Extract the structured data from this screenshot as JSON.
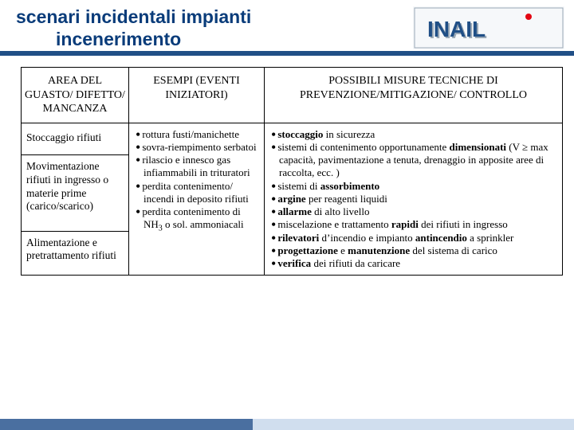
{
  "title_line1": "scenari incidentali impianti",
  "title_line2": "incenerimento",
  "logo_text": "INAIL",
  "logo_colors": {
    "text": "#204f86",
    "dot": "#e30613",
    "shadow": "#9aa8b5"
  },
  "rule_color": "#204f86",
  "table": {
    "headers": {
      "c1": "AREA DEL GUASTO/ DIFETTO/ MANCANZA",
      "c2": "ESEMPI (EVENTI INIZIATORI)",
      "c3": "POSSIBILI MISURE TECNICHE DI PREVENZIONE/MITIGAZIONE/ CONTROLLO"
    },
    "col1_rows": {
      "r1": "Stoccaggio rifiuti",
      "r2": "Movimentazione rifiuti in ingresso o materie prime (carico/scarico)",
      "r3": "Alimentazione e pretrattamento rifiuti"
    },
    "col2_items": [
      "rottura fusti/manichette",
      "sovra-riempimento serbatoi",
      "rilascio e innesco gas infiammabili in trituratori",
      "perdita contenimento/ incendi in deposito rifiuti",
      "perdita contenimento di NH<sub>3</sub> o sol. ammoniacali"
    ],
    "col3_items": [
      "<b>stoccaggio</b> in sicurezza",
      "sistemi di contenimento opportunamente <b>dimensionati</b> (V ≥ max capacità, pavimentazione a tenuta, drenaggio in apposite aree di raccolta, ecc. )",
      "sistemi di <b>assorbimento</b>",
      "<b>argine</b> per reagenti liquidi",
      "<b>allarme</b> di alto livello",
      "miscelazione e trattamento <b>rapidi</b> dei rifiuti in ingresso",
      "<b>rilevatori</b> d’incendio e impianto <b>antincendio</b> a sprinkler",
      "<b>progettazione</b> e <b>manutenzione</b> del sistema di carico",
      "<b>verifica</b> dei rifiuti da caricare"
    ]
  }
}
